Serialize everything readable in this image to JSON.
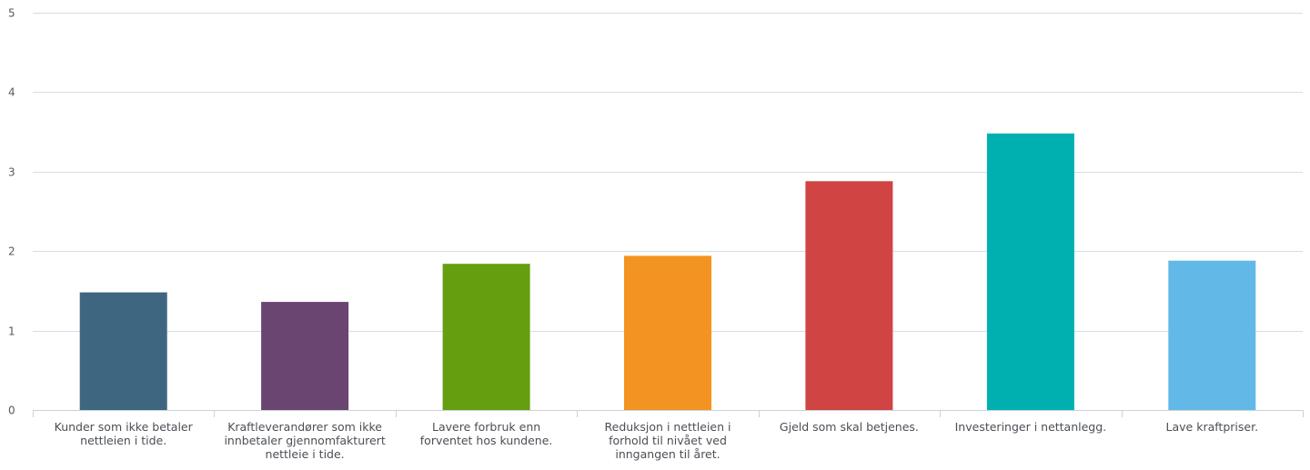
{
  "chart_data": {
    "type": "bar",
    "categories": [
      [
        "Kunder som ikke betaler",
        "nettleien i tide."
      ],
      [
        "Kraftleverandører som ikke",
        "innbetaler gjennomfakturert",
        "nettleie i tide."
      ],
      [
        "Lavere forbruk enn",
        "forventet hos kundene."
      ],
      [
        "Reduksjon i nettleien i",
        "forhold til nivået ved",
        "inngangen til året."
      ],
      [
        "Gjeld som skal betjenes."
      ],
      [
        "Investeringer i nettanlegg."
      ],
      [
        "Lave kraftpriser."
      ]
    ],
    "values": [
      1.48,
      1.36,
      1.84,
      1.94,
      2.88,
      3.48,
      1.88
    ],
    "colors": [
      "#3f6680",
      "#6b4571",
      "#659e0e",
      "#f39321",
      "#d04443",
      "#00b0b0",
      "#62b9e8"
    ],
    "ylim": [
      0,
      5
    ],
    "yticks": [
      "0",
      "1",
      "2",
      "3",
      "4",
      "5"
    ],
    "grid": true,
    "title": "",
    "xlabel": "",
    "ylabel": ""
  }
}
